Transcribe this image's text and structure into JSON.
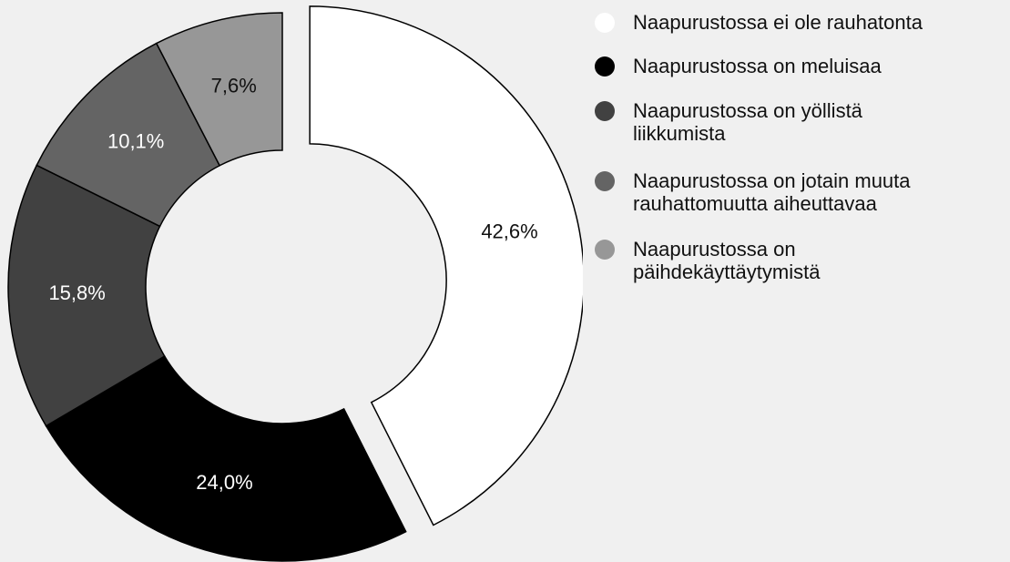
{
  "chart_data": {
    "type": "donut",
    "categories": [
      "Naapurustossa ei ole rauhatonta",
      "Naapurustossa on meluisaa",
      "Naapurustossa on yöllistä\nliikkumista",
      "Naapurustossa on jotain muuta\nrauhattomuutta aiheuttavaa",
      "Naapurustossa on\npäihdekäyttäytymistä"
    ],
    "values": [
      42.6,
      24.0,
      15.8,
      10.1,
      7.6
    ],
    "value_labels": [
      "42,6%",
      "24,0%",
      "15,8%",
      "10,1%",
      "7,6%"
    ],
    "colors": [
      "#ffffff",
      "#000000",
      "#414141",
      "#646464",
      "#979797"
    ],
    "label_colors": [
      "#111111",
      "#ffffff",
      "#ffffff",
      "#ffffff",
      "#111111"
    ],
    "legend": "right"
  }
}
